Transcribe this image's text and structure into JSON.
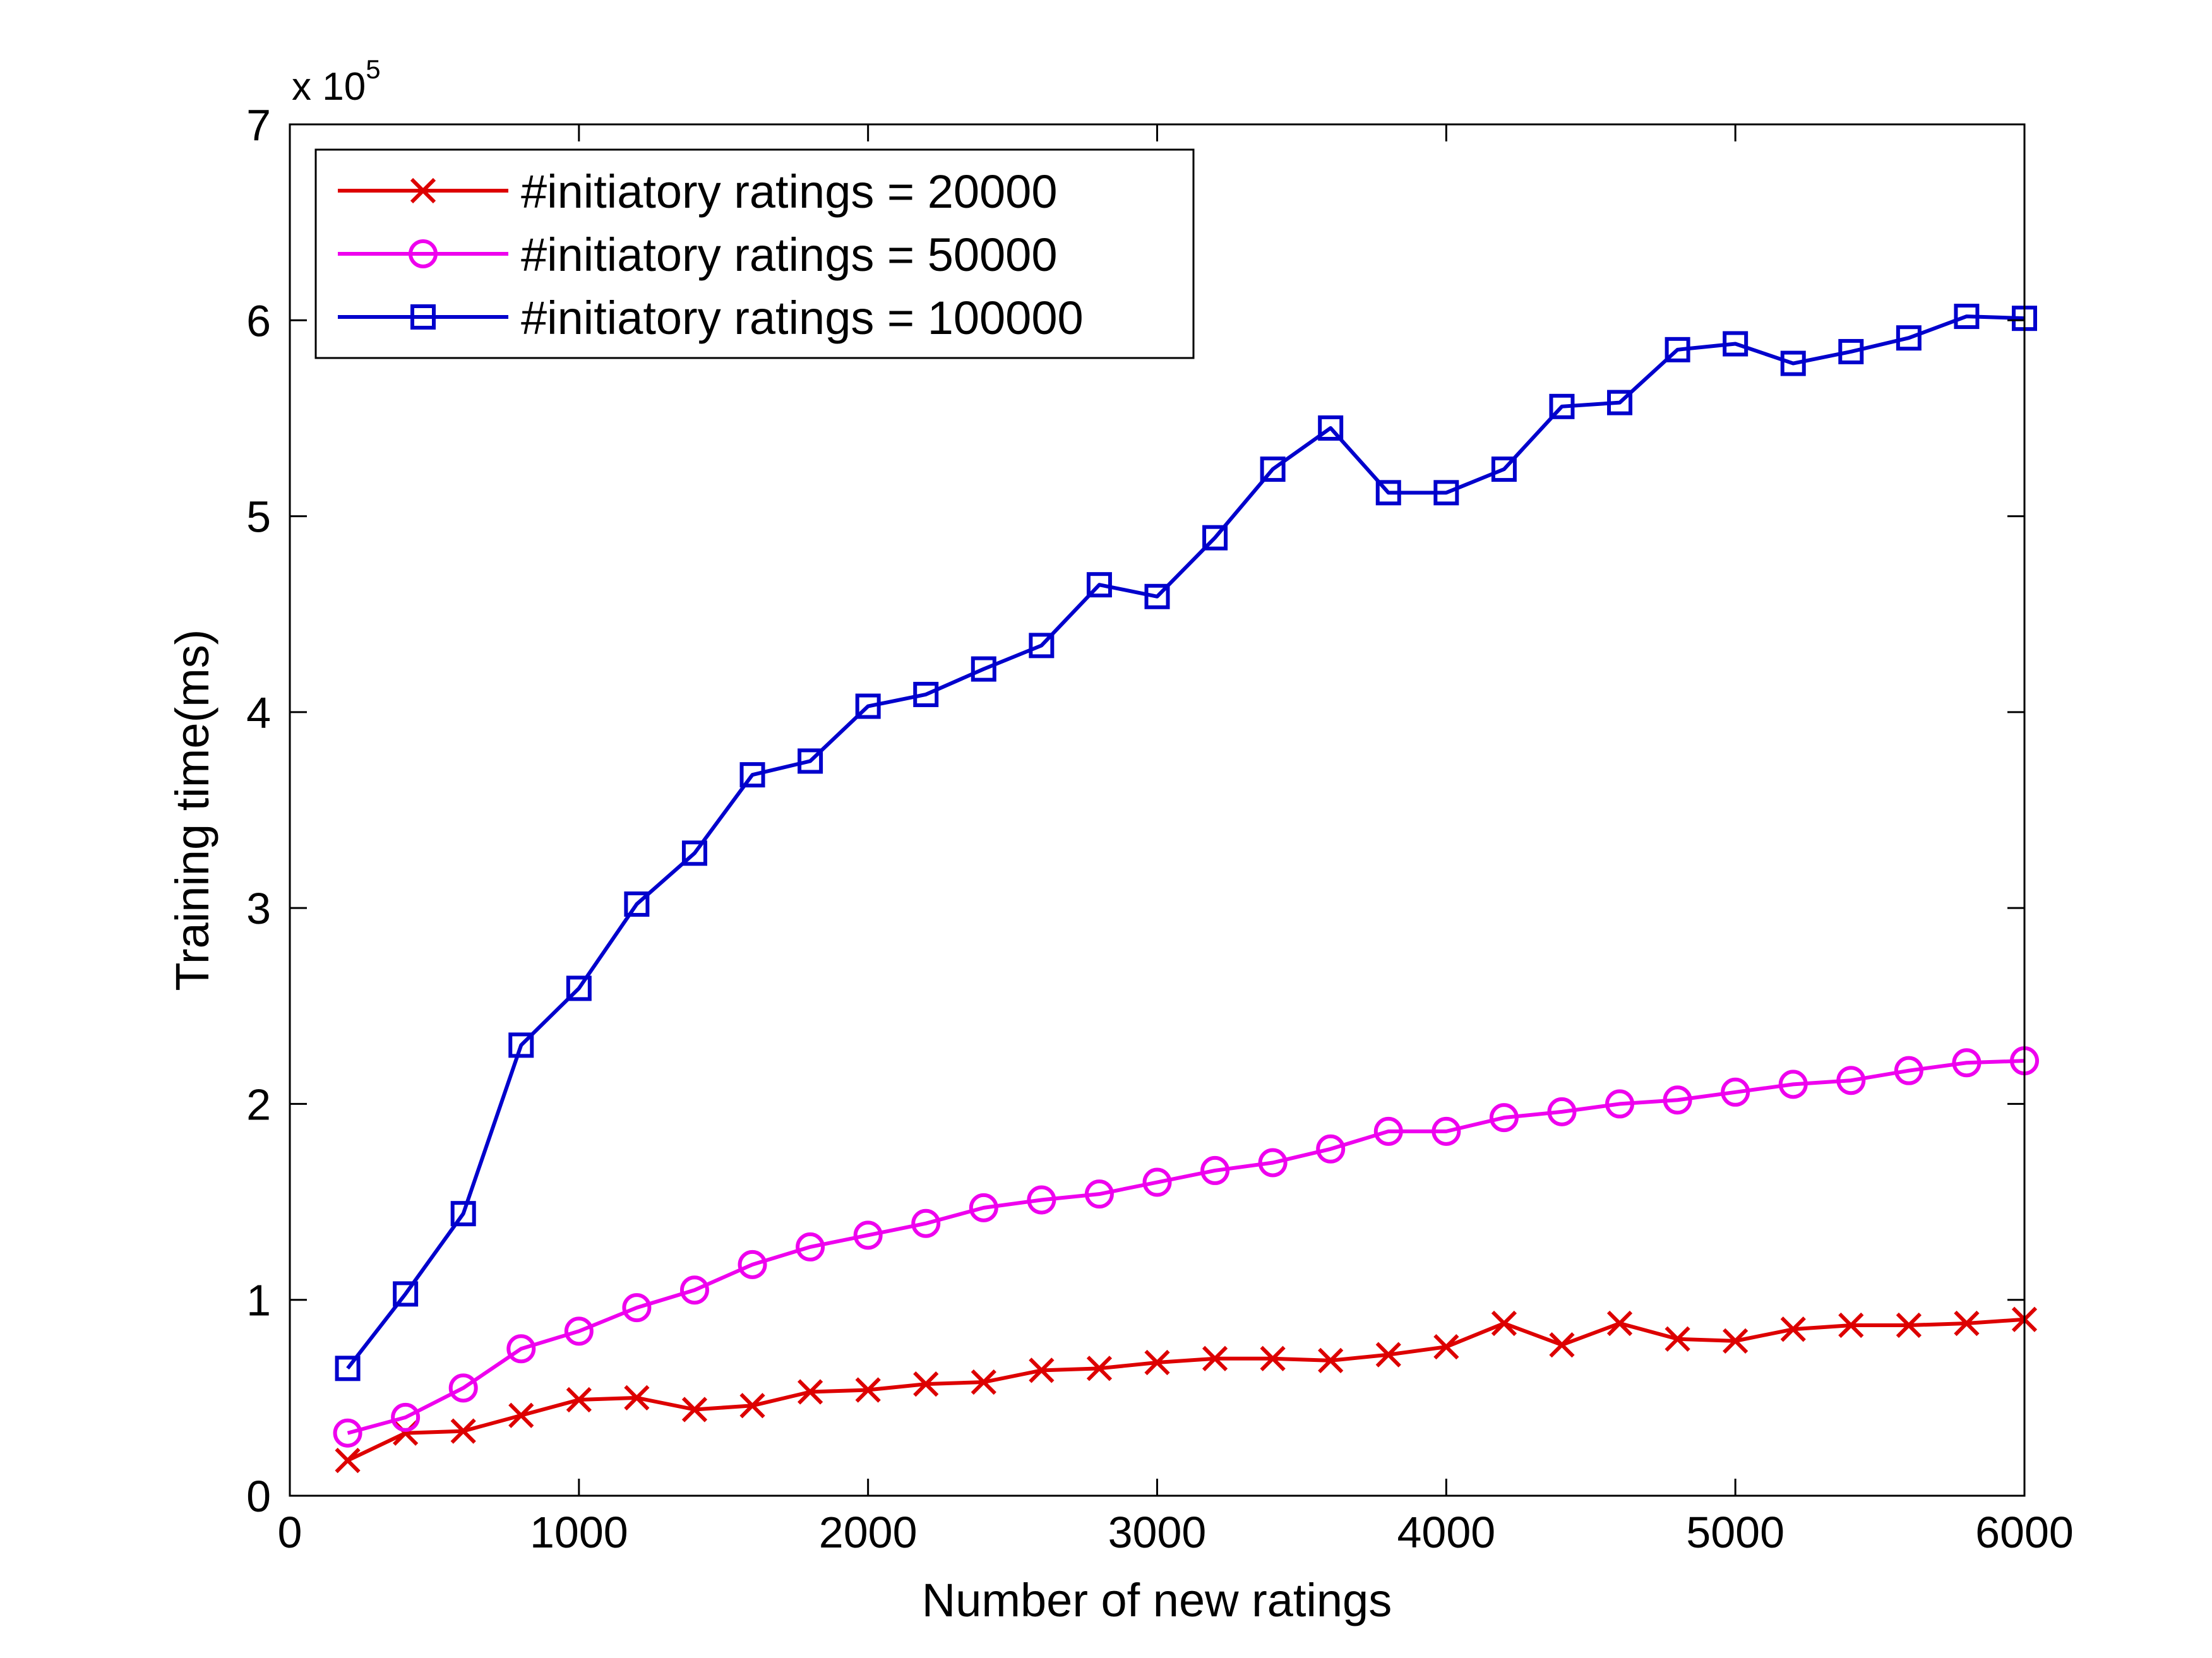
{
  "chart_data": {
    "type": "line",
    "title": "",
    "xlabel": "Number of new ratings",
    "ylabel": "Training time(ms)",
    "y_exponent_label": "x 10",
    "y_exponent_power": "5",
    "xlim": [
      0,
      6000
    ],
    "ylim": [
      0,
      7
    ],
    "xticks": [
      0,
      1000,
      2000,
      3000,
      4000,
      5000,
      6000
    ],
    "yticks": [
      0,
      1,
      2,
      3,
      4,
      5,
      6,
      7
    ],
    "grid": false,
    "legend_position": "top-left",
    "x": [
      200,
      400,
      600,
      800,
      1000,
      1200,
      1400,
      1600,
      1800,
      2000,
      2200,
      2400,
      2600,
      2800,
      3000,
      3200,
      3400,
      3600,
      3800,
      4000,
      4200,
      4400,
      4600,
      4800,
      5000,
      5200,
      5400,
      5600,
      5800,
      6000
    ],
    "series": [
      {
        "name": "#initiatory ratings = 20000",
        "color": "#dd0000",
        "marker": "x",
        "values": [
          0.18,
          0.32,
          0.33,
          0.41,
          0.49,
          0.5,
          0.44,
          0.46,
          0.53,
          0.54,
          0.57,
          0.58,
          0.64,
          0.65,
          0.68,
          0.7,
          0.7,
          0.69,
          0.72,
          0.76,
          0.88,
          0.77,
          0.88,
          0.8,
          0.79,
          0.85,
          0.87,
          0.87,
          0.88,
          0.9
        ]
      },
      {
        "name": "#initiatory ratings = 50000",
        "color": "#ee00ee",
        "marker": "circle",
        "values": [
          0.32,
          0.4,
          0.55,
          0.75,
          0.84,
          0.96,
          1.05,
          1.18,
          1.27,
          1.33,
          1.39,
          1.47,
          1.51,
          1.54,
          1.6,
          1.66,
          1.7,
          1.77,
          1.86,
          1.86,
          1.93,
          1.96,
          2.0,
          2.02,
          2.06,
          2.1,
          2.12,
          2.17,
          2.21,
          2.22
        ]
      },
      {
        "name": "#initiatory ratings = 100000",
        "color": "#0000cc",
        "marker": "square",
        "values": [
          0.65,
          1.03,
          1.44,
          2.3,
          2.59,
          3.02,
          3.28,
          3.68,
          3.75,
          4.03,
          4.09,
          4.22,
          4.34,
          4.65,
          4.59,
          4.89,
          5.24,
          5.45,
          5.12,
          5.12,
          5.24,
          5.56,
          5.58,
          5.85,
          5.88,
          5.78,
          5.84,
          5.91,
          6.02,
          6.01
        ]
      }
    ]
  }
}
